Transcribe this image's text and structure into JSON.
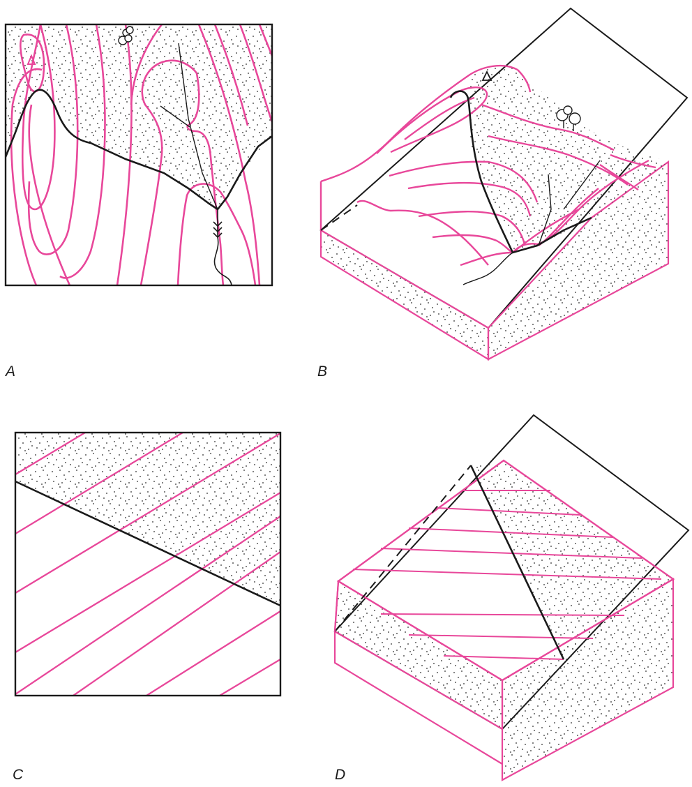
{
  "colors": {
    "contour": "#e8479a",
    "ink": "#1a1a1a",
    "stipple": "#2a2a2a",
    "background": "#ffffff"
  },
  "icons": [
    "triangulation-station-icon",
    "tree-icon"
  ],
  "panels": [
    {
      "id": "A",
      "label": "A"
    },
    {
      "id": "B",
      "label": "B"
    },
    {
      "id": "C",
      "label": "C"
    },
    {
      "id": "D",
      "label": "D"
    }
  ]
}
